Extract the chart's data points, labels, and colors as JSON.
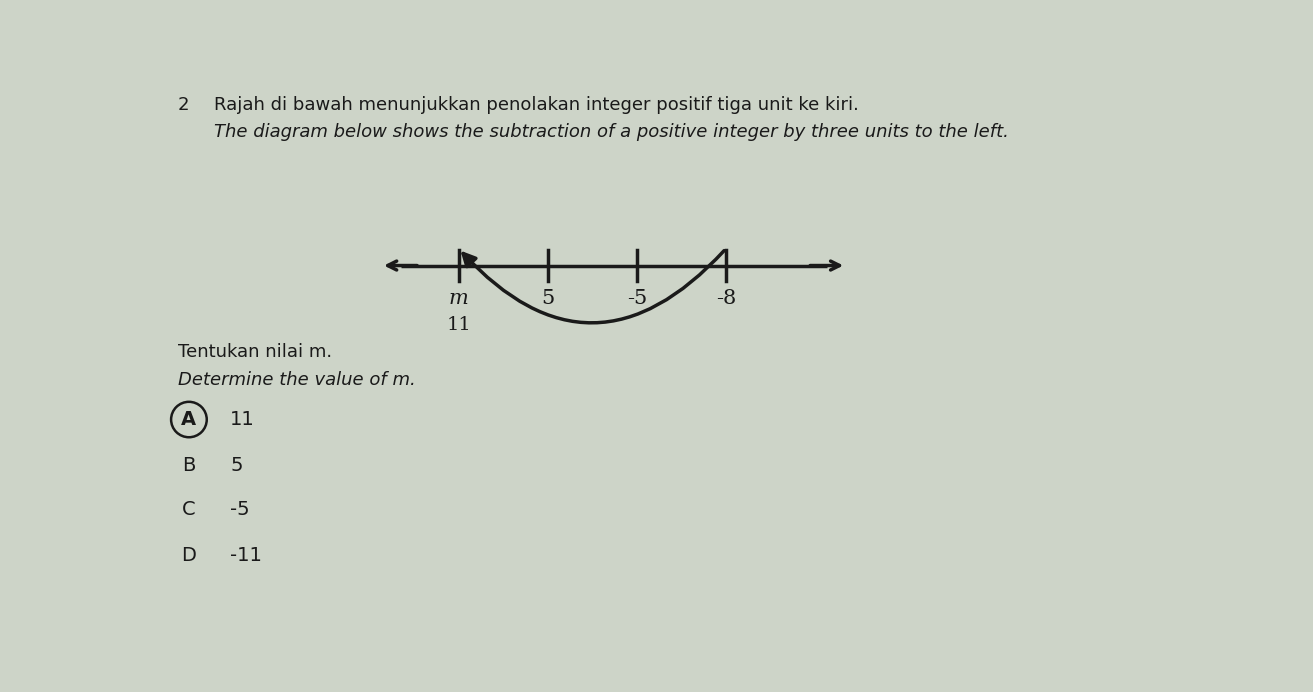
{
  "question_number": "2",
  "title_line1": "Rajah di bawah menunjukkan penolakan integer positif tiga unit ke kiri.",
  "title_line2": "The diagram below shows the subtraction of a positive integer by three units to the left.",
  "question_line1": "Tentukan nilai m.",
  "question_line2": "Determine the value of m.",
  "number_line_labels": [
    "m",
    "5",
    "-5",
    "-8"
  ],
  "number_line_label_below_m": "11",
  "options": [
    {
      "letter": "A",
      "value": "11",
      "circled": true
    },
    {
      "letter": "B",
      "value": "5",
      "circled": false
    },
    {
      "letter": "C",
      "value": "-5",
      "circled": false
    },
    {
      "letter": "D",
      "value": "-11",
      "circled": false
    }
  ],
  "bg_color": "#cdd4c8",
  "text_color": "#1a1a1a",
  "line_color": "#1a1a1a",
  "arrow_color": "#1a1a1a",
  "fig_width": 13.13,
  "fig_height": 6.92
}
